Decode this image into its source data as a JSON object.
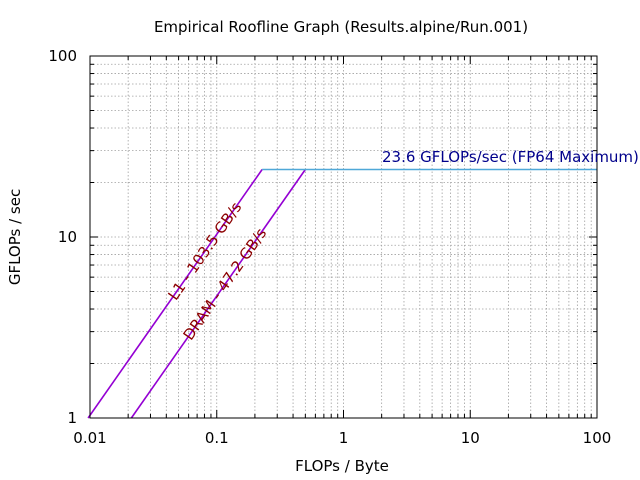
{
  "chart_data": {
    "type": "line",
    "title": "Empirical Roofline Graph (Results.alpine/Run.001)",
    "xlabel": "FLOPs / Byte",
    "ylabel": "GFLOPs / sec",
    "x_scale": "log",
    "y_scale": "log",
    "xlim": [
      0.01,
      100
    ],
    "ylim": [
      1,
      100
    ],
    "x_ticks": [
      {
        "value": 0.01,
        "label": "0.01"
      },
      {
        "value": 0.1,
        "label": "0.1"
      },
      {
        "value": 1,
        "label": "1"
      },
      {
        "value": 10,
        "label": "10"
      },
      {
        "value": 100,
        "label": "100"
      }
    ],
    "y_ticks": [
      {
        "value": 1,
        "label": "1"
      },
      {
        "value": 10,
        "label": "10"
      },
      {
        "value": 100,
        "label": "100"
      }
    ],
    "grid": true,
    "series": [
      {
        "label": "L1 - 103.5 GB/s",
        "points": [
          [
            0.00966,
            1
          ],
          [
            0.228,
            23.6
          ]
        ],
        "color": "#9400d3"
      },
      {
        "label": "DRAM - 47.2 GB/s",
        "points": [
          [
            0.0212,
            1
          ],
          [
            0.5,
            23.6
          ]
        ],
        "color": "#9400d3"
      },
      {
        "label": "23.6 GFLOPs/sec (FP64 Maximum)",
        "points": [
          [
            0.228,
            23.6
          ],
          [
            100,
            23.6
          ]
        ],
        "color": "#4fa8d8"
      }
    ],
    "label_colors": {
      "bandwidth": "#8b0000",
      "peak": "#00008b"
    }
  }
}
